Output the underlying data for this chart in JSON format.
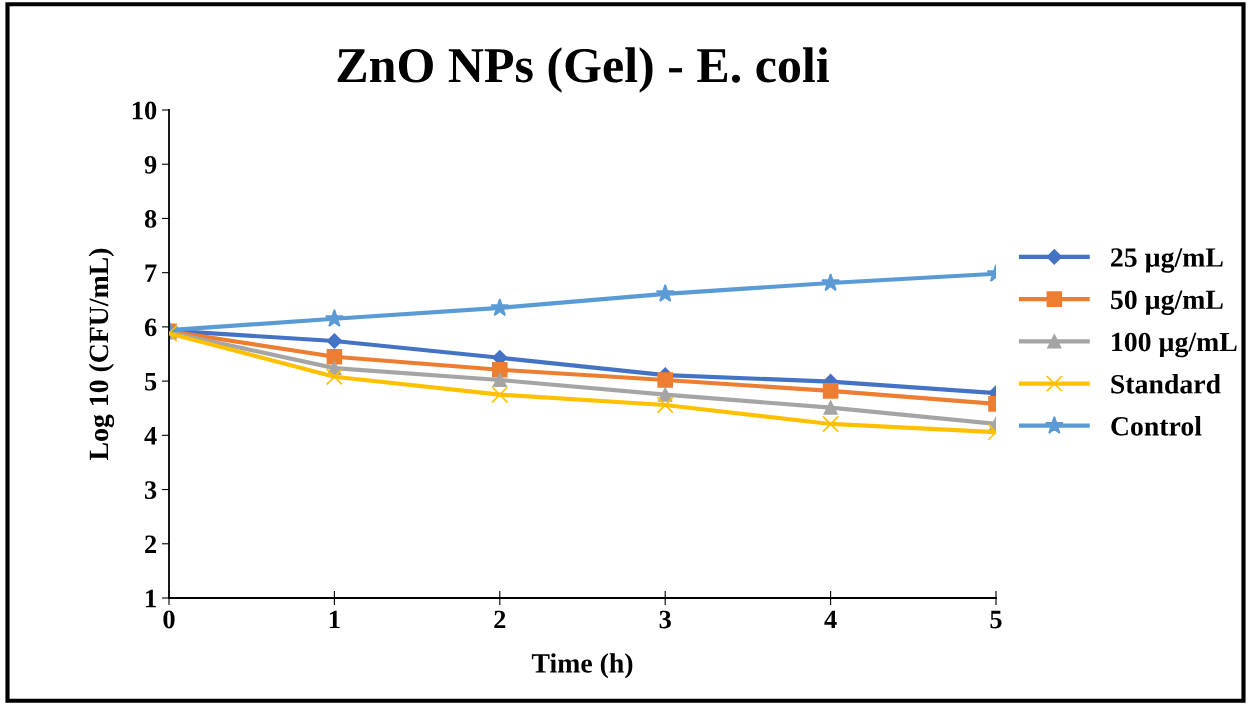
{
  "chart_data": {
    "type": "line",
    "title": "ZnO NPs (Gel) - E. coli",
    "xlabel": "Time (h)",
    "ylabel": "Log 10 (CFU/mL)",
    "x": [
      0,
      1,
      2,
      3,
      4,
      5
    ],
    "xlim": [
      0,
      5
    ],
    "xticks": [
      0,
      1,
      2,
      3,
      4,
      5
    ],
    "ylim": [
      1,
      10
    ],
    "yticks": [
      1,
      2,
      3,
      4,
      5,
      6,
      7,
      8,
      9,
      10
    ],
    "grid": false,
    "legend": "right",
    "line_style": "solid",
    "series": [
      {
        "name": "25 µg/mL",
        "color": "#4472c4",
        "marker": "diamond",
        "values": [
          5.93,
          5.74,
          5.43,
          5.11,
          4.99,
          4.78
        ]
      },
      {
        "name": "50 µg/mL",
        "color": "#ed7d31",
        "marker": "square",
        "values": [
          5.92,
          5.45,
          5.21,
          5.02,
          4.82,
          4.58
        ]
      },
      {
        "name": "100 µg/mL",
        "color": "#a5a5a5",
        "marker": "triangle",
        "values": [
          5.9,
          5.24,
          5.02,
          4.75,
          4.51,
          4.21
        ]
      },
      {
        "name": "Standard",
        "color": "#ffc000",
        "marker": "cross",
        "values": [
          5.88,
          5.08,
          4.75,
          4.56,
          4.21,
          4.06
        ]
      },
      {
        "name": "Control",
        "color": "#5b9bd5",
        "marker": "star",
        "values": [
          5.94,
          6.15,
          6.35,
          6.61,
          6.81,
          6.98
        ]
      }
    ]
  }
}
